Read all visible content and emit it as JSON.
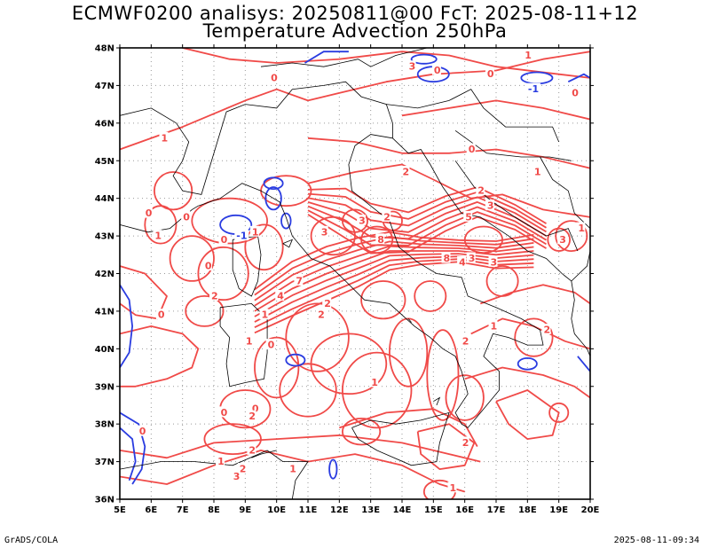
{
  "title_line1": "ECMWF0200 analisys: 20250811@00 FcT: 2025-08-11+12",
  "title_line2": "Temperature Advection 250hPa",
  "lat_labels": [
    "48N",
    "47N",
    "46N",
    "45N",
    "44N",
    "43N",
    "42N",
    "41N",
    "40N",
    "39N",
    "38N",
    "37N",
    "36N"
  ],
  "lon_labels": [
    "5E",
    "6E",
    "7E",
    "8E",
    "9E",
    "10E",
    "11E",
    "12E",
    "13E",
    "14E",
    "15E",
    "16E",
    "17E",
    "18E",
    "19E",
    "20E"
  ],
  "contour_labels": [
    {
      "text": "0",
      "lon": 9.9,
      "lat": 47.2,
      "color": "positive"
    },
    {
      "text": "3",
      "lon": 14.3,
      "lat": 47.5,
      "color": "positive"
    },
    {
      "text": "0",
      "lon": 15.1,
      "lat": 47.4,
      "color": "positive"
    },
    {
      "text": "0",
      "lon": 16.8,
      "lat": 47.3,
      "color": "positive"
    },
    {
      "text": "1",
      "lon": 18.0,
      "lat": 47.8,
      "color": "positive"
    },
    {
      "text": "-1",
      "lon": 18.1,
      "lat": 46.9,
      "color": "negative"
    },
    {
      "text": "0",
      "lon": 19.5,
      "lat": 46.8,
      "color": "positive"
    },
    {
      "text": "1",
      "lon": 6.4,
      "lat": 45.6,
      "color": "positive"
    },
    {
      "text": "0",
      "lon": 16.2,
      "lat": 45.3,
      "color": "positive"
    },
    {
      "text": "2",
      "lon": 14.1,
      "lat": 44.7,
      "color": "positive"
    },
    {
      "text": "1",
      "lon": 18.3,
      "lat": 44.7,
      "color": "positive"
    },
    {
      "text": "2",
      "lon": 16.5,
      "lat": 44.2,
      "color": "positive"
    },
    {
      "text": "3",
      "lon": 16.8,
      "lat": 43.8,
      "color": "positive"
    },
    {
      "text": "5",
      "lon": 16.1,
      "lat": 43.5,
      "color": "positive"
    },
    {
      "text": "0",
      "lon": 5.9,
      "lat": 43.6,
      "color": "positive"
    },
    {
      "text": "0",
      "lon": 7.1,
      "lat": 43.5,
      "color": "positive"
    },
    {
      "text": "0",
      "lon": 8.3,
      "lat": 42.9,
      "color": "positive"
    },
    {
      "text": "-1",
      "lon": 8.8,
      "lat": 43.0,
      "color": "negative"
    },
    {
      "text": "1",
      "lon": 9.3,
      "lat": 43.1,
      "color": "positive"
    },
    {
      "text": "3",
      "lon": 11.5,
      "lat": 43.1,
      "color": "positive"
    },
    {
      "text": "3",
      "lon": 12.7,
      "lat": 43.4,
      "color": "positive"
    },
    {
      "text": "8",
      "lon": 13.3,
      "lat": 42.9,
      "color": "positive"
    },
    {
      "text": "2",
      "lon": 13.5,
      "lat": 43.5,
      "color": "positive"
    },
    {
      "text": "1",
      "lon": 19.7,
      "lat": 43.2,
      "color": "positive"
    },
    {
      "text": "3",
      "lon": 19.1,
      "lat": 42.9,
      "color": "positive"
    },
    {
      "text": "3",
      "lon": 16.2,
      "lat": 42.4,
      "color": "positive"
    },
    {
      "text": "8",
      "lon": 15.4,
      "lat": 42.4,
      "color": "positive"
    },
    {
      "text": "4",
      "lon": 15.9,
      "lat": 42.3,
      "color": "positive"
    },
    {
      "text": "3",
      "lon": 16.9,
      "lat": 42.3,
      "color": "positive"
    },
    {
      "text": "1",
      "lon": 6.2,
      "lat": 43.0,
      "color": "positive"
    },
    {
      "text": "0",
      "lon": 7.8,
      "lat": 42.2,
      "color": "positive"
    },
    {
      "text": "2",
      "lon": 8.0,
      "lat": 41.4,
      "color": "positive"
    },
    {
      "text": "0",
      "lon": 6.3,
      "lat": 40.9,
      "color": "positive"
    },
    {
      "text": "7",
      "lon": 10.7,
      "lat": 41.8,
      "color": "positive"
    },
    {
      "text": "4",
      "lon": 10.1,
      "lat": 41.4,
      "color": "positive"
    },
    {
      "text": "2",
      "lon": 11.6,
      "lat": 41.2,
      "color": "positive"
    },
    {
      "text": "2",
      "lon": 11.4,
      "lat": 40.9,
      "color": "positive"
    },
    {
      "text": "1",
      "lon": 9.6,
      "lat": 40.9,
      "color": "positive"
    },
    {
      "text": "1",
      "lon": 9.1,
      "lat": 40.2,
      "color": "positive"
    },
    {
      "text": "0",
      "lon": 9.8,
      "lat": 40.1,
      "color": "positive"
    },
    {
      "text": "2",
      "lon": 16.0,
      "lat": 40.2,
      "color": "positive"
    },
    {
      "text": "1",
      "lon": 16.9,
      "lat": 40.6,
      "color": "positive"
    },
    {
      "text": "2",
      "lon": 18.6,
      "lat": 40.5,
      "color": "positive"
    },
    {
      "text": "1",
      "lon": 13.1,
      "lat": 39.1,
      "color": "positive"
    },
    {
      "text": "0",
      "lon": 8.3,
      "lat": 38.3,
      "color": "positive"
    },
    {
      "text": "0",
      "lon": 9.3,
      "lat": 38.4,
      "color": "positive"
    },
    {
      "text": "2",
      "lon": 9.2,
      "lat": 38.2,
      "color": "positive"
    },
    {
      "text": "0",
      "lon": 5.7,
      "lat": 37.8,
      "color": "positive"
    },
    {
      "text": "2",
      "lon": 16.0,
      "lat": 37.5,
      "color": "positive"
    },
    {
      "text": "1",
      "lon": 8.2,
      "lat": 37.0,
      "color": "positive"
    },
    {
      "text": "2",
      "lon": 9.2,
      "lat": 37.3,
      "color": "positive"
    },
    {
      "text": "2",
      "lon": 8.9,
      "lat": 36.8,
      "color": "positive"
    },
    {
      "text": "3",
      "lon": 8.7,
      "lat": 36.6,
      "color": "positive"
    },
    {
      "text": "1",
      "lon": 10.5,
      "lat": 36.8,
      "color": "positive"
    },
    {
      "text": "1",
      "lon": 15.6,
      "lat": 36.3,
      "color": "positive"
    }
  ],
  "colors": {
    "positive": "#f04a48",
    "negative": "#2a3ce0",
    "coast": "#000000",
    "grid": "#9a9a9a",
    "frame": "#000000"
  },
  "footer_left": "GrADS/COLA",
  "footer_right": "2025-08-11-09:34"
}
